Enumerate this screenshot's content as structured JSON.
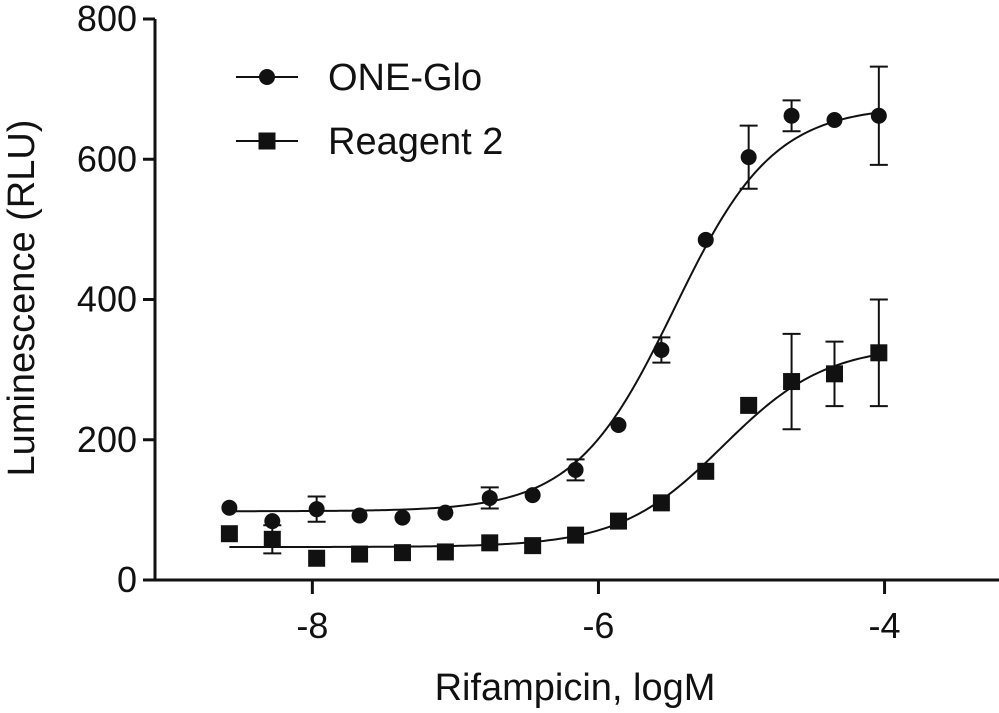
{
  "chart_data": {
    "type": "scatter",
    "title": "",
    "xlabel": "Rifampicin, logM",
    "ylabel": "Luminescence (RLU)",
    "xlim": [
      -9.1,
      -3.2
    ],
    "ylim": [
      0,
      800
    ],
    "xticks": [
      -8,
      -6,
      -4
    ],
    "yticks": [
      0,
      200,
      400,
      600,
      800
    ],
    "xtick_labels": [
      "-8",
      "-6",
      "-4"
    ],
    "ytick_labels": [
      "0",
      "200",
      "400",
      "600",
      "800"
    ],
    "grid": false,
    "legend_position": "top-left",
    "series": [
      {
        "name": "ONE-Glo",
        "marker": "circle",
        "color": "#111111",
        "x": [
          -8.58,
          -8.28,
          -7.97,
          -7.67,
          -7.37,
          -7.07,
          -6.76,
          -6.46,
          -6.16,
          -5.86,
          -5.56,
          -5.25,
          -4.95,
          -4.65,
          -4.35,
          -4.04
        ],
        "y": [
          103,
          84,
          101,
          92,
          89,
          96,
          117,
          121,
          157,
          221,
          328,
          485,
          603,
          662,
          656,
          662
        ],
        "error": [
          0,
          0,
          18,
          0,
          0,
          0,
          15,
          0,
          15,
          0,
          18,
          0,
          45,
          22,
          0,
          70
        ],
        "fit": {
          "bottom": 98,
          "top": 676,
          "logEC50": -5.47,
          "hill": 1.25
        }
      },
      {
        "name": "Reagent 2",
        "marker": "square",
        "color": "#111111",
        "x": [
          -8.58,
          -8.28,
          -7.97,
          -7.67,
          -7.37,
          -7.07,
          -6.76,
          -6.46,
          -6.16,
          -5.86,
          -5.56,
          -5.25,
          -4.95,
          -4.65,
          -4.35,
          -4.04
        ],
        "y": [
          66,
          58,
          31,
          37,
          39,
          40,
          53,
          49,
          64,
          84,
          110,
          155,
          249,
          283,
          294,
          324
        ],
        "error": [
          0,
          20,
          0,
          0,
          0,
          0,
          0,
          0,
          0,
          0,
          0,
          0,
          0,
          68,
          46,
          76
        ],
        "fit": {
          "bottom": 47,
          "top": 335,
          "logEC50": -5.13,
          "hill": 1.2
        }
      }
    ]
  }
}
